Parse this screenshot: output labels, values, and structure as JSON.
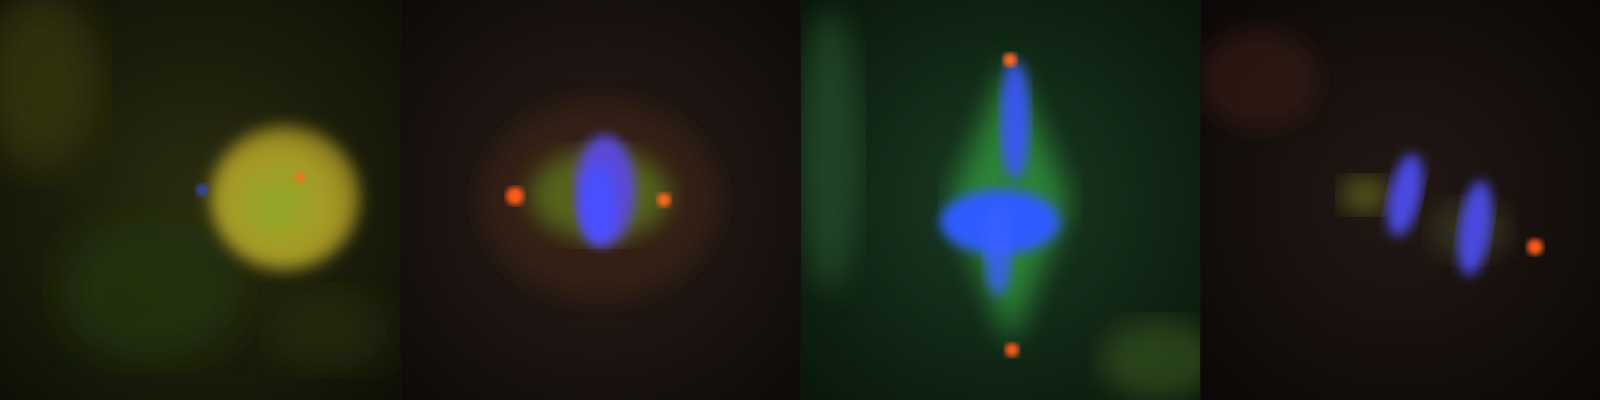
{
  "figure": {
    "panel_count": 4,
    "channels": {
      "dna": "#2f55ff",
      "microtubules": "#3fbf2a",
      "centrosome": "#ff5a1e"
    },
    "panels": [
      {
        "stage": "interphase",
        "background": "#1f2410"
      },
      {
        "stage": "prometaphase",
        "background": "#1a1410"
      },
      {
        "stage": "metaphase",
        "background": "#0f2a16"
      },
      {
        "stage": "anaphase",
        "background": "#150f0c"
      }
    ]
  }
}
